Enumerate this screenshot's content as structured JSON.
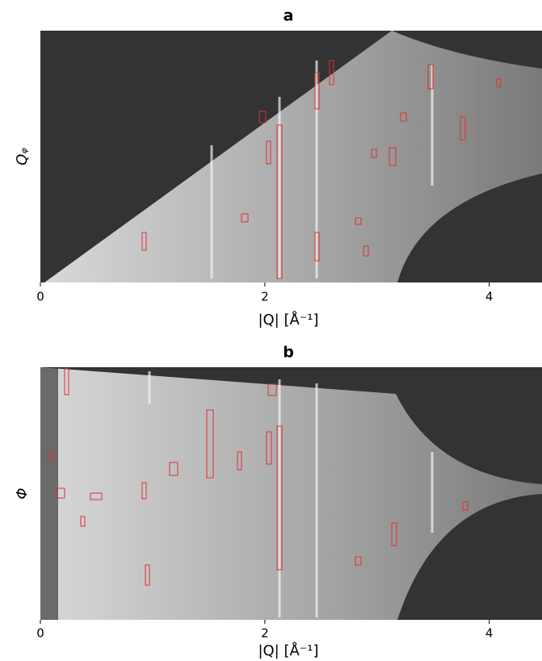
{
  "chart_data": [
    {
      "type": "image",
      "title": "a",
      "xlabel": "|Q| [Å⁻¹]",
      "ylabel": "Qᵩ",
      "xlim": [
        0,
        4.47
      ],
      "xticks": [
        0,
        2,
        4
      ]
    },
    {
      "type": "image",
      "title": "b",
      "xlabel": "|Q| [Å⁻¹]",
      "ylabel": "Φ",
      "xlim": [
        0,
        4.47
      ],
      "xticks": [
        0,
        2,
        4
      ]
    }
  ]
}
